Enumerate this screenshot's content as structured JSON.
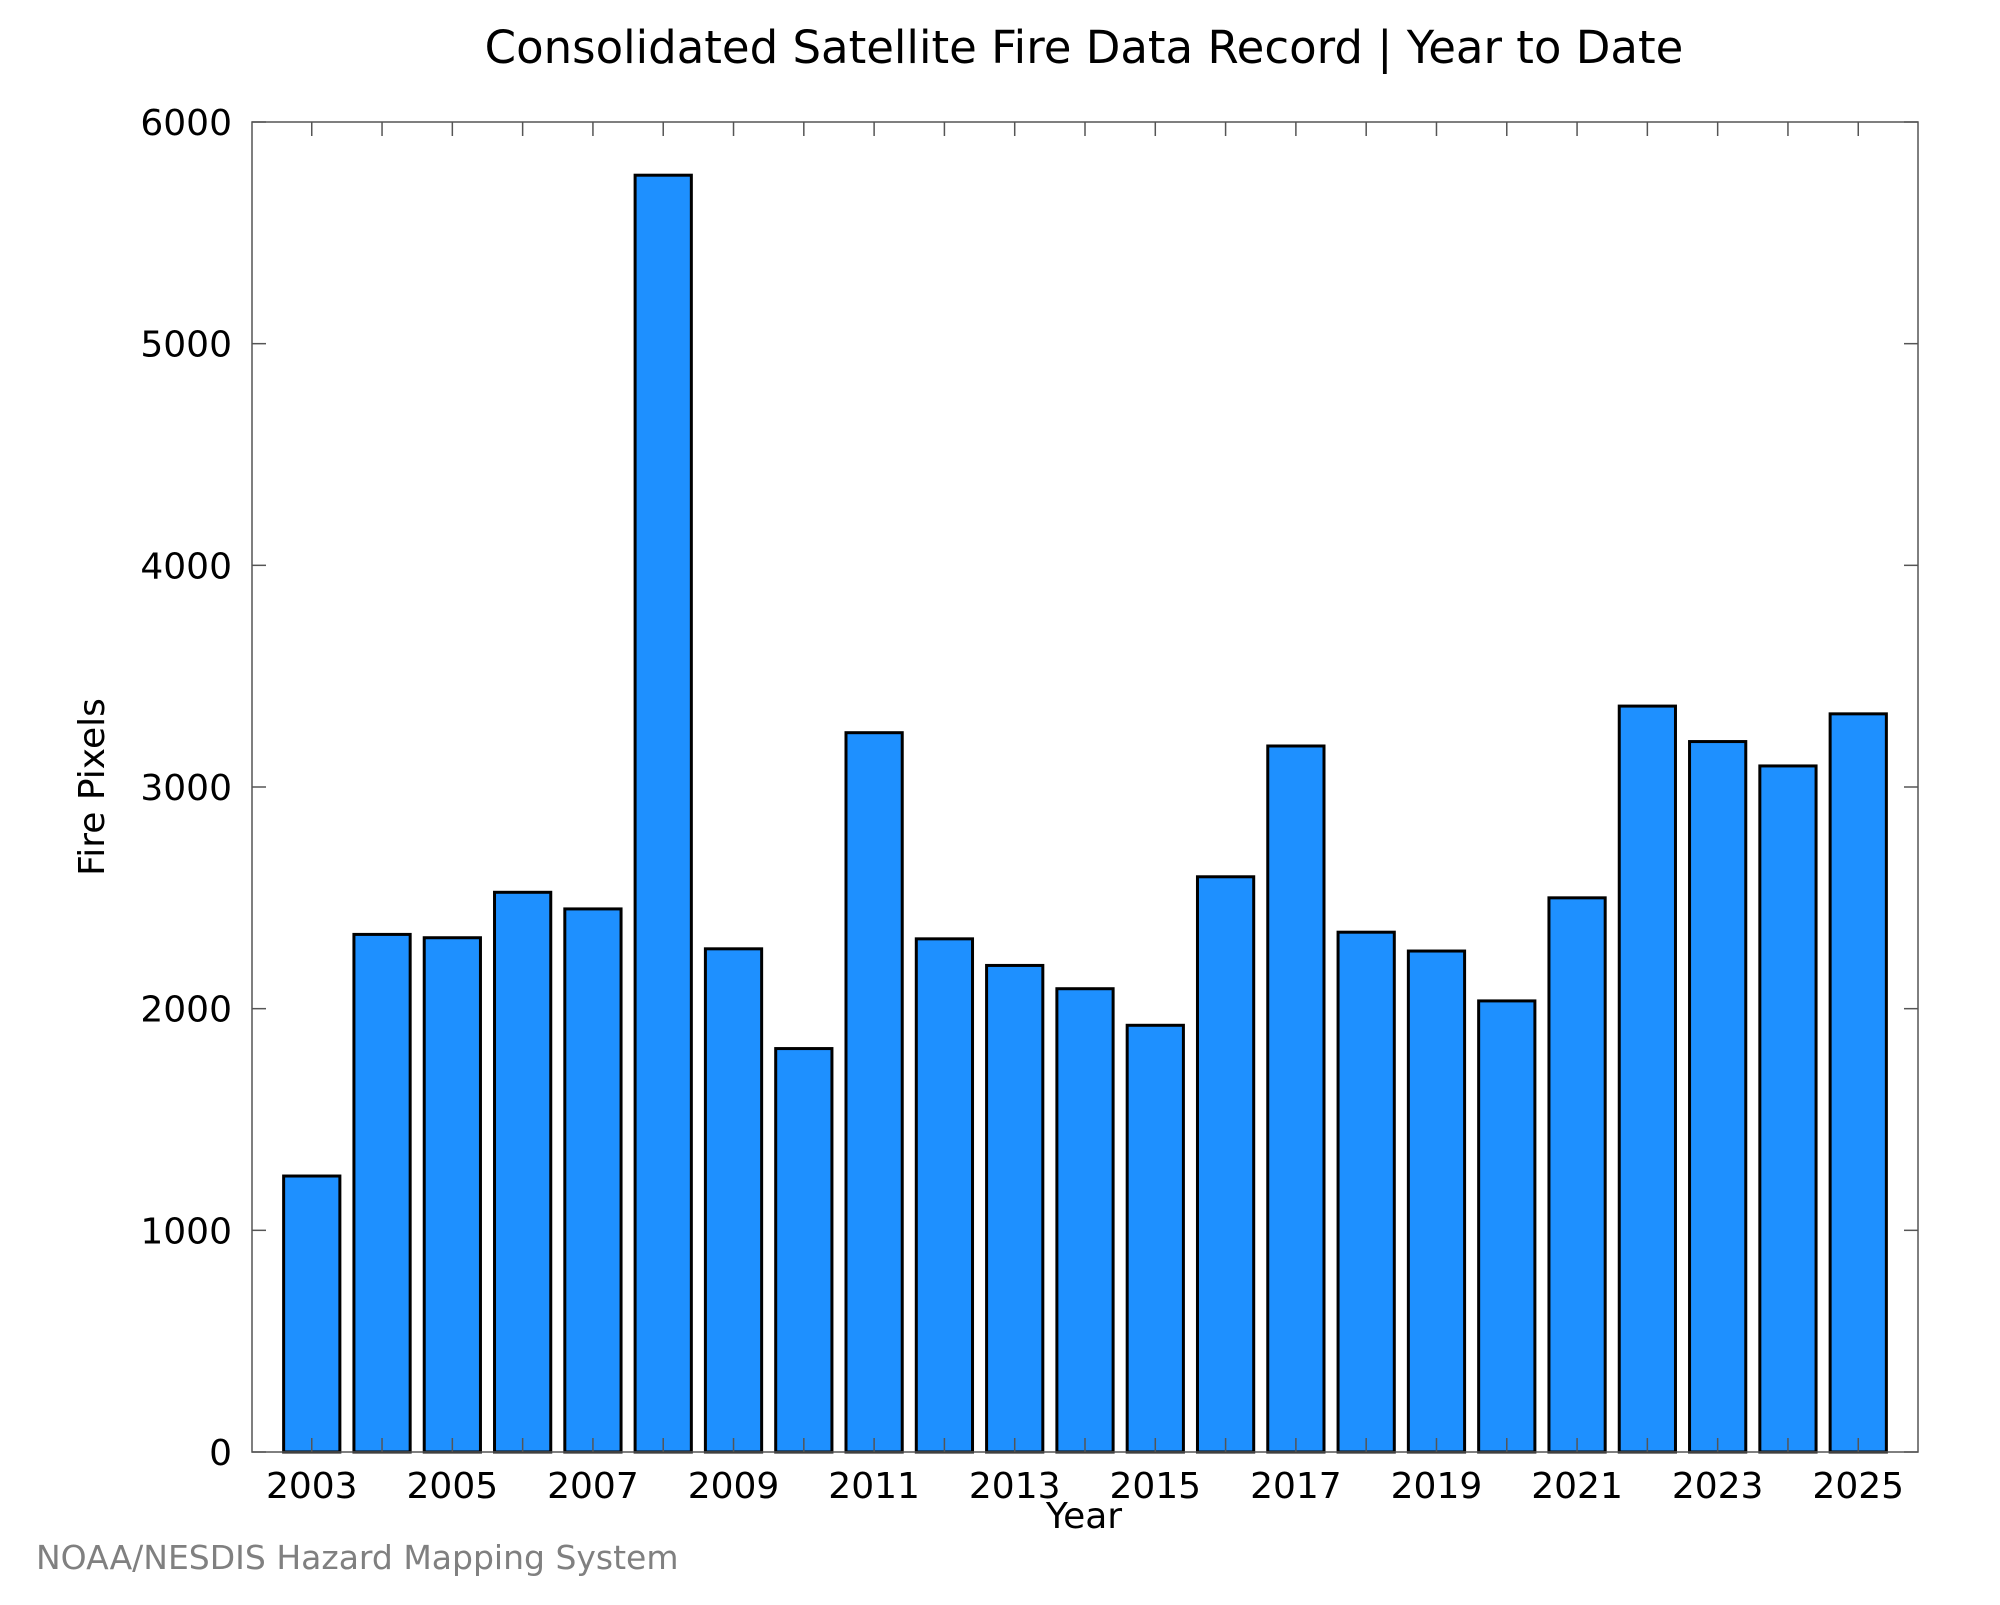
{
  "chart_data": {
    "type": "bar",
    "title": "Consolidated Satellite Fire Data Record | Year to Date",
    "xlabel": "Year",
    "ylabel": "Fire Pixels",
    "categories": [
      "2003",
      "2004",
      "2005",
      "2006",
      "2007",
      "2008",
      "2009",
      "2010",
      "2011",
      "2012",
      "2013",
      "2014",
      "2015",
      "2016",
      "2017",
      "2018",
      "2019",
      "2020",
      "2021",
      "2022",
      "2023",
      "2024",
      "2025"
    ],
    "values": [
      1245,
      2335,
      2320,
      2525,
      2450,
      5760,
      2270,
      1820,
      3245,
      2315,
      2195,
      2090,
      1925,
      2595,
      3185,
      2345,
      2260,
      2035,
      2500,
      3365,
      3205,
      3095,
      3330
    ],
    "ylim": [
      0,
      6000
    ],
    "yticks": [
      0,
      1000,
      2000,
      3000,
      4000,
      5000,
      6000
    ],
    "xtick_labels": [
      "2003",
      "2005",
      "2007",
      "2009",
      "2011",
      "2013",
      "2015",
      "2017",
      "2019",
      "2021",
      "2023",
      "2025"
    ],
    "bar_color": "#1e90ff",
    "edge_color": "#000000",
    "grid": false,
    "legend": "none"
  },
  "footer": {
    "credit": "NOAA/NESDIS Hazard Mapping System"
  }
}
